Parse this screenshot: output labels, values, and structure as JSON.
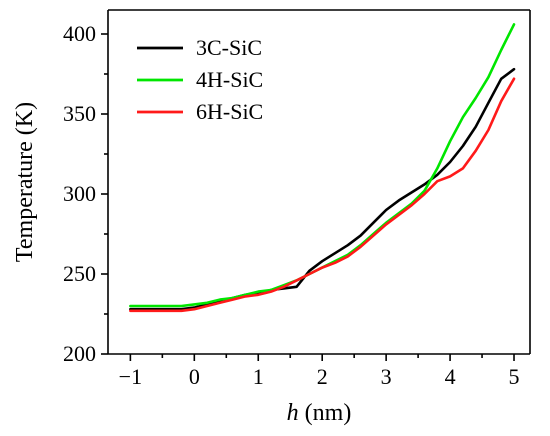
{
  "chart_data": {
    "type": "line",
    "title": "",
    "xlabel_italic": "h",
    "xlabel_unit": " (nm)",
    "ylabel": "Temperature (K)",
    "xlim": [
      -1.35,
      5.25
    ],
    "ylim": [
      200,
      415
    ],
    "xticks": [
      -1,
      0,
      1,
      2,
      3,
      4,
      5
    ],
    "xtick_labels": [
      "−1",
      "0",
      "1",
      "2",
      "3",
      "4",
      "5"
    ],
    "yticks": [
      200,
      250,
      300,
      350,
      400
    ],
    "ytick_labels": [
      "200",
      "250",
      "300",
      "350",
      "400"
    ],
    "grid": false,
    "legend_position": "top-left",
    "series": [
      {
        "name": "3C-SiC",
        "color": "#000000",
        "x": [
          -1.0,
          -0.8,
          -0.6,
          -0.4,
          -0.2,
          0.0,
          0.2,
          0.4,
          0.6,
          0.8,
          1.0,
          1.2,
          1.4,
          1.6,
          1.8,
          2.0,
          2.2,
          2.4,
          2.6,
          2.8,
          3.0,
          3.2,
          3.4,
          3.6,
          3.8,
          4.0,
          4.2,
          4.4,
          4.6,
          4.8,
          5.0
        ],
        "y": [
          228,
          228,
          228,
          228,
          228,
          229,
          231,
          233,
          235,
          237,
          238,
          240,
          241,
          242,
          252,
          258,
          263,
          268,
          274,
          282,
          290,
          296,
          301,
          306,
          312,
          320,
          330,
          342,
          357,
          372,
          378
        ]
      },
      {
        "name": "4H-SiC",
        "color": "#00e600",
        "x": [
          -1.0,
          -0.8,
          -0.6,
          -0.4,
          -0.2,
          0.0,
          0.2,
          0.4,
          0.6,
          0.8,
          1.0,
          1.2,
          1.4,
          1.6,
          1.8,
          2.0,
          2.2,
          2.4,
          2.6,
          2.8,
          3.0,
          3.2,
          3.4,
          3.6,
          3.8,
          4.0,
          4.2,
          4.4,
          4.6,
          4.8,
          5.0
        ],
        "y": [
          230,
          230,
          230,
          230,
          230,
          231,
          232,
          234,
          235,
          237,
          239,
          240,
          243,
          246,
          250,
          254,
          258,
          262,
          268,
          275,
          282,
          288,
          294,
          302,
          316,
          333,
          348,
          360,
          373,
          390,
          406
        ]
      },
      {
        "name": "6H-SiC",
        "color": "#ff1a1a",
        "x": [
          -1.0,
          -0.8,
          -0.6,
          -0.4,
          -0.2,
          0.0,
          0.2,
          0.4,
          0.6,
          0.8,
          1.0,
          1.2,
          1.4,
          1.6,
          1.8,
          2.0,
          2.2,
          2.4,
          2.6,
          2.8,
          3.0,
          3.2,
          3.4,
          3.6,
          3.8,
          4.0,
          4.2,
          4.4,
          4.6,
          4.8,
          5.0
        ],
        "y": [
          227,
          227,
          227,
          227,
          227,
          228,
          230,
          232,
          234,
          236,
          237,
          239,
          242,
          246,
          250,
          254,
          257,
          261,
          267,
          274,
          281,
          287,
          293,
          300,
          308,
          311,
          316,
          327,
          340,
          358,
          372
        ]
      }
    ]
  }
}
